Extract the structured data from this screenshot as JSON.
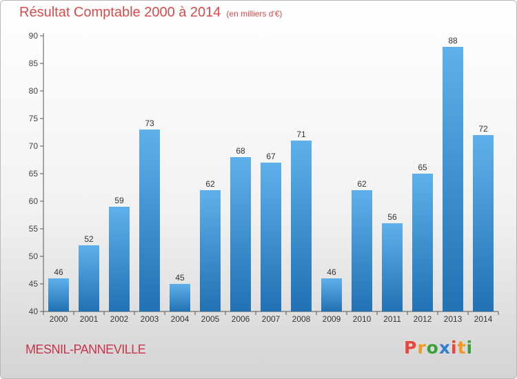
{
  "header": {
    "title": "Résultat Comptable 2000 à 2014",
    "subtitle": "(en milliers d'€)"
  },
  "footer": {
    "commune": "MESNIL-PANNEVILLE",
    "logo": "Proxiti"
  },
  "chart_data": {
    "type": "bar",
    "title": "Résultat Comptable 2000 à 2014",
    "subtitle": "(en milliers d'€)",
    "xlabel": "",
    "ylabel": "",
    "categories": [
      "2000",
      "2001",
      "2002",
      "2003",
      "2004",
      "2005",
      "2006",
      "2007",
      "2008",
      "2009",
      "2010",
      "2011",
      "2012",
      "2013",
      "2014"
    ],
    "values": [
      46,
      52,
      59,
      73,
      45,
      62,
      68,
      67,
      71,
      46,
      62,
      56,
      65,
      88,
      72
    ],
    "ylim": [
      40,
      90
    ],
    "yticks": [
      40,
      45,
      50,
      55,
      60,
      65,
      70,
      75,
      80,
      85,
      90
    ],
    "grid": false,
    "bar_color_top": "#5fb0ea",
    "bar_color_bottom": "#2271b3"
  },
  "colors": {
    "title": "#d94a4a",
    "commune": "#c8344a",
    "logo_letters": [
      "#e8463a",
      "#f09a1e",
      "#3aa13a",
      "#2f7fd0",
      "#e8463a",
      "#f09a1e",
      "#3aa13a"
    ]
  }
}
